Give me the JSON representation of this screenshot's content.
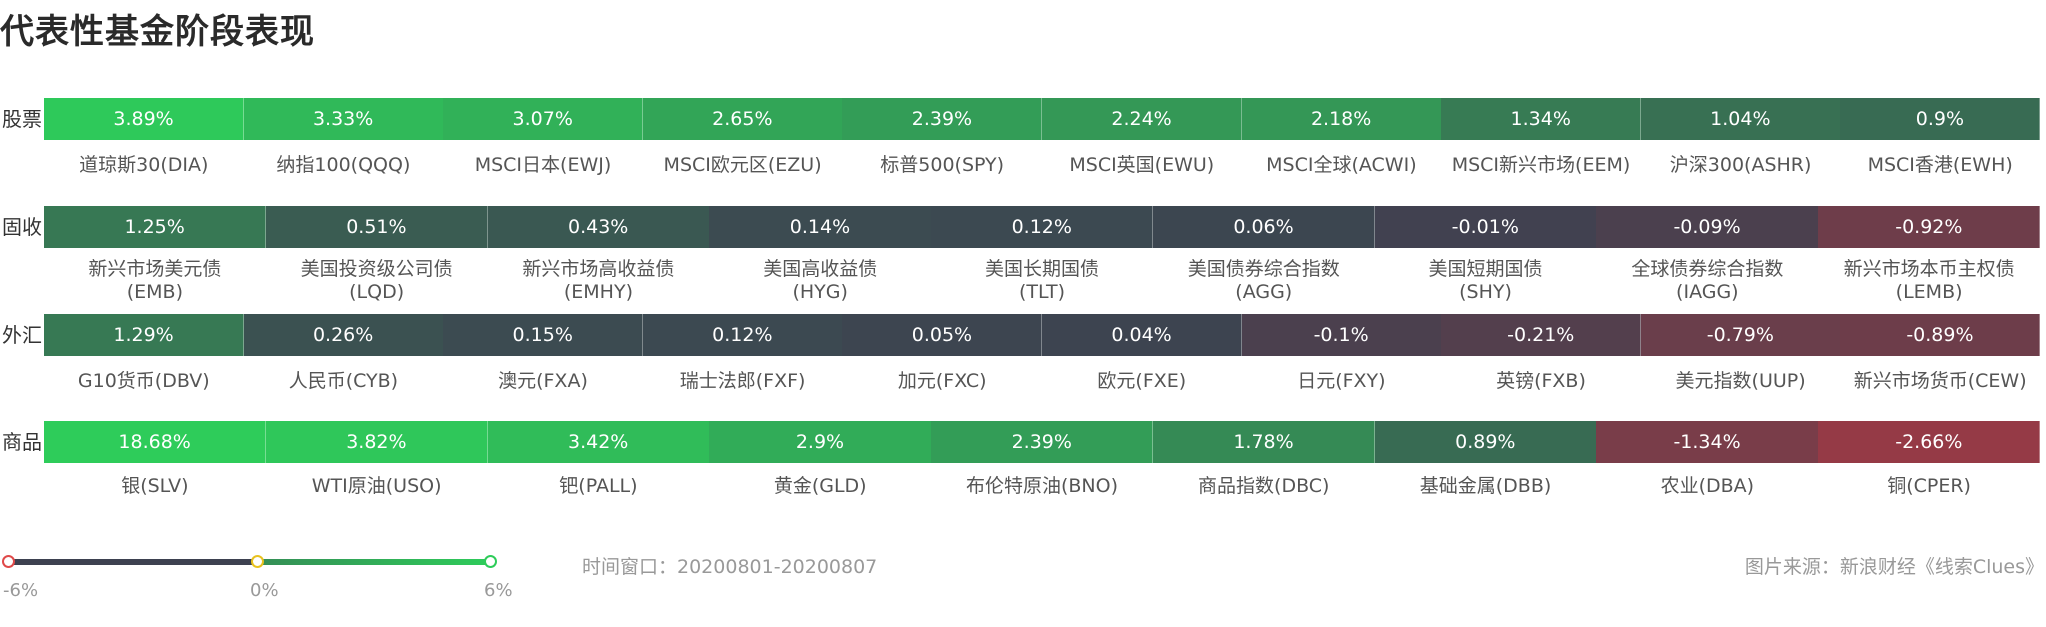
{
  "title": "代表性基金阶段表现",
  "colors": {
    "strong_pos": "#2ecc5a",
    "neutral": "#3d4150",
    "strong_neg": "#9b3a45",
    "legend_neg": "#e04a4a",
    "legend_zero": "#e8c21f",
    "legend_pos": "#2ecc5a"
  },
  "legend": {
    "min_label": "-6%",
    "mid_label": "0%",
    "max_label": "6%",
    "min": -6,
    "max": 6
  },
  "time_window": "时间窗口：20200801-20200807",
  "source": "图片来源：新浪财经《线索Clues》",
  "chart_data": {
    "type": "heatmap",
    "unit": "%",
    "rows": [
      {
        "label": "股票",
        "items": [
          {
            "name": "道琼斯30(DIA)",
            "value": 3.89,
            "text": "3.89%"
          },
          {
            "name": "纳指100(QQQ)",
            "value": 3.33,
            "text": "3.33%"
          },
          {
            "name": "MSCI日本(EWJ)",
            "value": 3.07,
            "text": "3.07%"
          },
          {
            "name": "MSCI欧元区(EZU)",
            "value": 2.65,
            "text": "2.65%"
          },
          {
            "name": "标普500(SPY)",
            "value": 2.39,
            "text": "2.39%"
          },
          {
            "name": "MSCI英国(EWU)",
            "value": 2.24,
            "text": "2.24%"
          },
          {
            "name": "MSCI全球(ACWI)",
            "value": 2.18,
            "text": "2.18%"
          },
          {
            "name": "MSCI新兴市场(EEM)",
            "value": 1.34,
            "text": "1.34%"
          },
          {
            "name": "沪深300(ASHR)",
            "value": 1.04,
            "text": "1.04%"
          },
          {
            "name": "MSCI香港(EWH)",
            "value": 0.9,
            "text": "0.9%"
          }
        ]
      },
      {
        "label": "固收",
        "items": [
          {
            "name": "新兴市场美元债",
            "code": "(EMB)",
            "value": 1.25,
            "text": "1.25%"
          },
          {
            "name": "美国投资级公司债",
            "code": "(LQD)",
            "value": 0.51,
            "text": "0.51%"
          },
          {
            "name": "新兴市场高收益债",
            "code": "(EMHY)",
            "value": 0.43,
            "text": "0.43%"
          },
          {
            "name": "美国高收益债",
            "code": "(HYG)",
            "value": 0.14,
            "text": "0.14%"
          },
          {
            "name": "美国长期国债",
            "code": "(TLT)",
            "value": 0.12,
            "text": "0.12%"
          },
          {
            "name": "美国债券综合指数",
            "code": "(AGG)",
            "value": 0.06,
            "text": "0.06%"
          },
          {
            "name": "美国短期国债",
            "code": "(SHY)",
            "value": -0.01,
            "text": "-0.01%"
          },
          {
            "name": "全球债券综合指数",
            "code": "(IAGG)",
            "value": -0.09,
            "text": "-0.09%"
          },
          {
            "name": "新兴市场本币主权债",
            "code": "(LEMB)",
            "value": -0.92,
            "text": "-0.92%"
          }
        ]
      },
      {
        "label": "外汇",
        "items": [
          {
            "name": "G10货币(DBV)",
            "value": 1.29,
            "text": "1.29%"
          },
          {
            "name": "人民币(CYB)",
            "value": 0.26,
            "text": "0.26%"
          },
          {
            "name": "澳元(FXA)",
            "value": 0.15,
            "text": "0.15%"
          },
          {
            "name": "瑞士法郎(FXF)",
            "value": 0.12,
            "text": "0.12%"
          },
          {
            "name": "加元(FXC)",
            "value": 0.05,
            "text": "0.05%"
          },
          {
            "name": "欧元(FXE)",
            "value": 0.04,
            "text": "0.04%"
          },
          {
            "name": "日元(FXY)",
            "value": -0.1,
            "text": "-0.1%"
          },
          {
            "name": "英镑(FXB)",
            "value": -0.21,
            "text": "-0.21%"
          },
          {
            "name": "美元指数(UUP)",
            "value": -0.79,
            "text": "-0.79%"
          },
          {
            "name": "新兴市场货币(CEW)",
            "value": -0.89,
            "text": "-0.89%"
          }
        ]
      },
      {
        "label": "商品",
        "items": [
          {
            "name": "银(SLV)",
            "value": 18.68,
            "text": "18.68%"
          },
          {
            "name": "WTI原油(USO)",
            "value": 3.82,
            "text": "3.82%"
          },
          {
            "name": "钯(PALL)",
            "value": 3.42,
            "text": "3.42%"
          },
          {
            "name": "黄金(GLD)",
            "value": 2.9,
            "text": "2.9%"
          },
          {
            "name": "布伦特原油(BNO)",
            "value": 2.39,
            "text": "2.39%"
          },
          {
            "name": "商品指数(DBC)",
            "value": 1.78,
            "text": "1.78%"
          },
          {
            "name": "基础金属(DBB)",
            "value": 0.89,
            "text": "0.89%"
          },
          {
            "name": "农业(DBA)",
            "value": -1.34,
            "text": "-1.34%"
          },
          {
            "name": "铜(CPER)",
            "value": -2.66,
            "text": "-2.66%"
          }
        ]
      }
    ]
  }
}
